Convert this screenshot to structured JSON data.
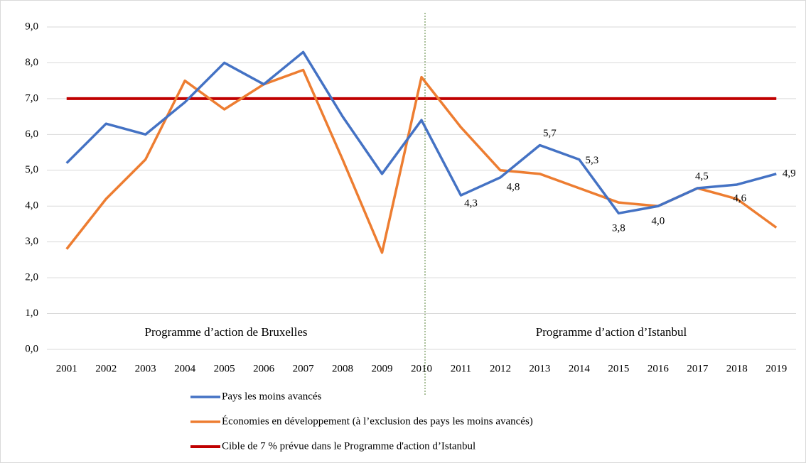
{
  "chart_data": {
    "type": "line",
    "categories": [
      "2001",
      "2002",
      "2003",
      "2004",
      "2005",
      "2006",
      "2007",
      "2008",
      "2009",
      "2010",
      "2011",
      "2012",
      "2013",
      "2014",
      "2015",
      "2016",
      "2017",
      "2018",
      "2019"
    ],
    "series": [
      {
        "name": "Pays les moins avancés",
        "color": "#4472c4",
        "values": [
          5.2,
          6.3,
          6.0,
          6.9,
          8.0,
          7.4,
          8.3,
          6.5,
          4.9,
          6.4,
          4.3,
          4.8,
          5.7,
          5.3,
          3.8,
          4.0,
          4.5,
          4.6,
          4.9
        ],
        "value_labels": [
          null,
          null,
          null,
          null,
          null,
          null,
          null,
          null,
          null,
          null,
          "4,3",
          "4,8",
          "5,7",
          "5,3",
          "3,8",
          "4,0",
          "4,5",
          "4,6",
          "4,9"
        ]
      },
      {
        "name": "Économies en développement (à l’exclusion des pays les moins avancés)",
        "color": "#ed7d31",
        "values": [
          2.8,
          4.2,
          5.3,
          7.5,
          6.7,
          7.4,
          7.8,
          5.3,
          2.7,
          7.6,
          6.2,
          5.0,
          4.9,
          4.5,
          4.1,
          4.0,
          4.5,
          4.2,
          3.4
        ]
      },
      {
        "name": "Cible de 7 % prévue dans le Programme d'action d’Istanbul",
        "color": "#c00000",
        "values": [
          7,
          7,
          7,
          7,
          7,
          7,
          7,
          7,
          7,
          7,
          7,
          7,
          7,
          7,
          7,
          7,
          7,
          7,
          7
        ]
      }
    ],
    "annotations": [
      "Programme d’action de Bruxelles",
      "Programme d’action d’Istanbul"
    ],
    "ylim": [
      0,
      9
    ],
    "yticks": [
      {
        "value": 0,
        "label": "0,0"
      },
      {
        "value": 1,
        "label": "1,0"
      },
      {
        "value": 2,
        "label": "2,0"
      },
      {
        "value": 3,
        "label": "3,0"
      },
      {
        "value": 4,
        "label": "4,0"
      },
      {
        "value": 5,
        "label": "5,0"
      },
      {
        "value": 6,
        "label": "6,0"
      },
      {
        "value": 7,
        "label": "7,0"
      },
      {
        "value": 8,
        "label": "8,0"
      },
      {
        "value": 9,
        "label": "9,0"
      }
    ],
    "grid": true
  }
}
